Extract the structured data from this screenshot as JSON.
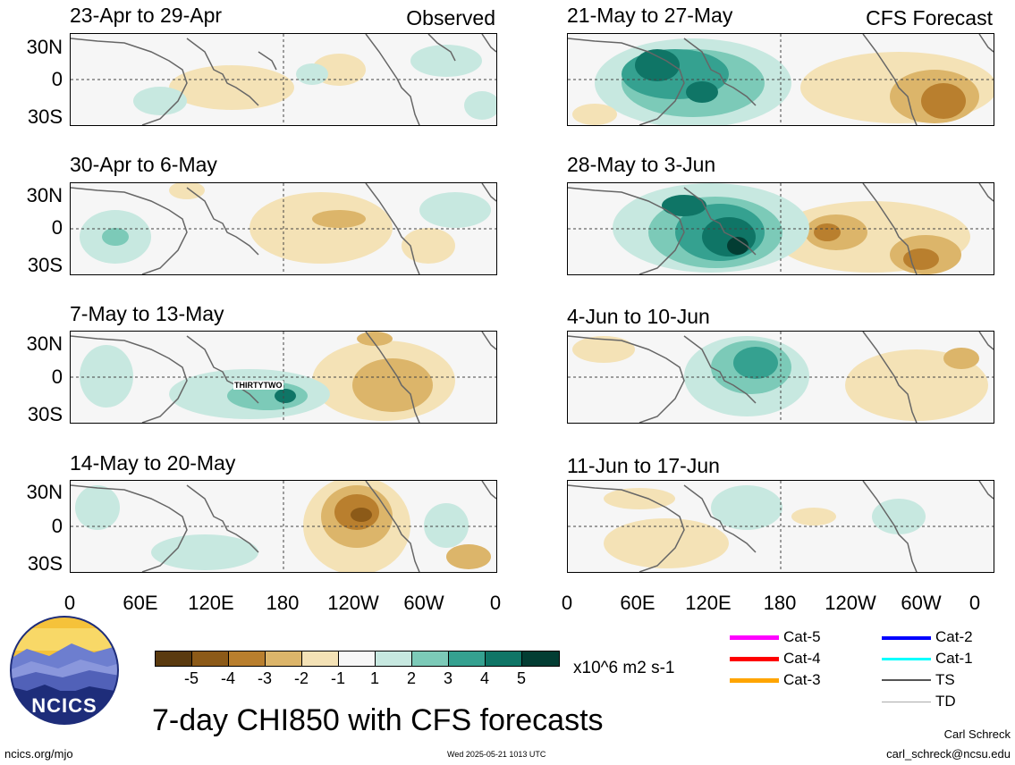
{
  "header": {
    "observed_tag": "Observed",
    "forecast_tag": "CFS Forecast"
  },
  "panels": {
    "observed": [
      {
        "title": "23-Apr to 29-Apr"
      },
      {
        "title": "30-Apr to 6-May"
      },
      {
        "title": "7-May to 13-May",
        "storm_label": "THIRTYTWO"
      },
      {
        "title": "14-May to 20-May"
      }
    ],
    "forecast": [
      {
        "title": "21-May to 27-May"
      },
      {
        "title": "28-May to 3-Jun"
      },
      {
        "title": "4-Jun to 10-Jun"
      },
      {
        "title": "11-Jun to 17-Jun"
      }
    ]
  },
  "axes": {
    "lat_labels": [
      "30N",
      "0",
      "30S"
    ],
    "lon_labels": [
      "0",
      "60E",
      "120E",
      "180",
      "120W",
      "60W",
      "0"
    ]
  },
  "colorbar": {
    "labels": [
      "-5",
      "-4",
      "-3",
      "-2",
      "-1",
      "1",
      "2",
      "3",
      "4",
      "5"
    ],
    "colors": [
      "#5a3a0f",
      "#8c5a18",
      "#b97f2e",
      "#dcb56a",
      "#f4e2b6",
      "#f7f7f7",
      "#c7e8e0",
      "#7ccab8",
      "#35a190",
      "#0f7566",
      "#033d33"
    ],
    "units": "x10^6 m2 s-1"
  },
  "legend": {
    "items": [
      {
        "label": "Cat-5",
        "color": "#ff00ff"
      },
      {
        "label": "Cat-4",
        "color": "#ff0000"
      },
      {
        "label": "Cat-3",
        "color": "#ffa500"
      },
      {
        "label": "Cat-2",
        "color": "#0000ff"
      },
      {
        "label": "Cat-1",
        "color": "#00ffff"
      },
      {
        "label": "TS",
        "color": "#555555"
      },
      {
        "label": "TD",
        "color": "#aaaaaa"
      }
    ]
  },
  "logo": {
    "text": "NCICS"
  },
  "footer": {
    "title": "7-day CHI850 with CFS forecasts",
    "url": "ncics.org/mjo",
    "timestamp": "Wed 2025-05-21 1013 UTC",
    "author": "Carl Schreck",
    "email": "carl_schreck@ncsu.edu"
  }
}
